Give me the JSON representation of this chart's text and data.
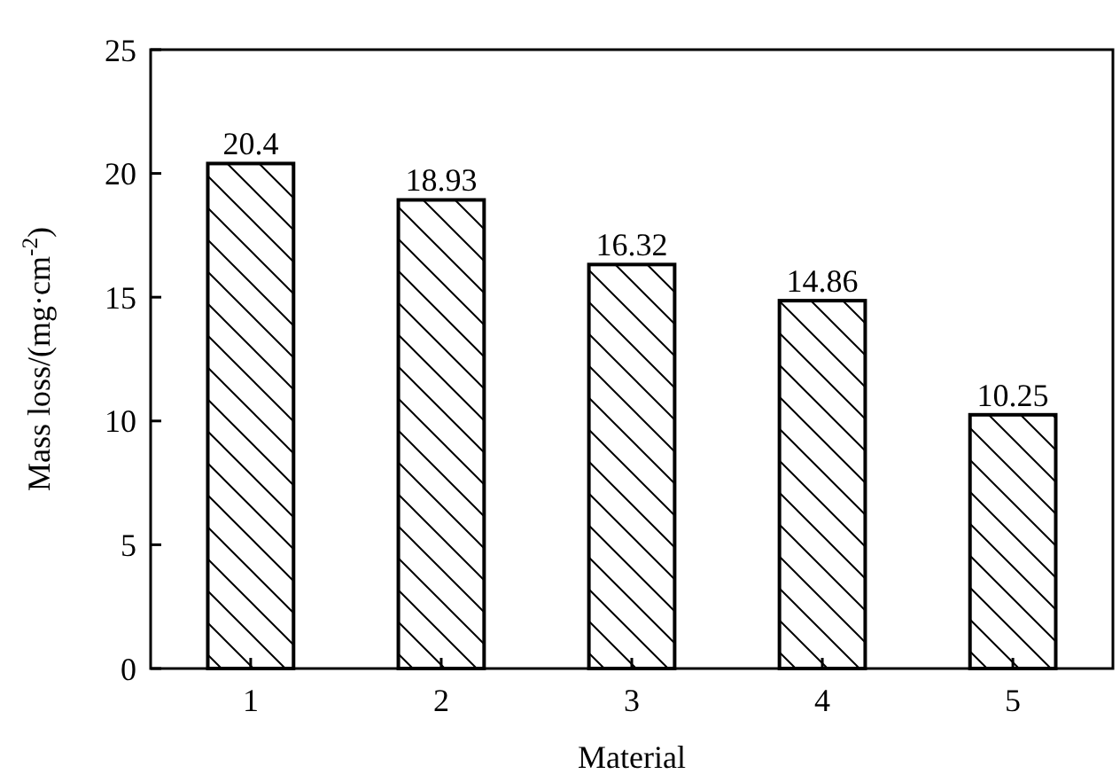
{
  "chart_data": {
    "type": "bar",
    "xlabel": "Material",
    "ylabel": "Mass loss/(mg·cm$^{-2}$)",
    "categories": [
      "1",
      "2",
      "3",
      "4",
      "5"
    ],
    "values": [
      20.4,
      18.93,
      16.32,
      14.86,
      10.25
    ],
    "color": "#000000",
    "ylim": [
      0,
      25
    ],
    "yticks": [
      0,
      5,
      10,
      15,
      20,
      25
    ],
    "data_labels": true,
    "grid": false
  }
}
